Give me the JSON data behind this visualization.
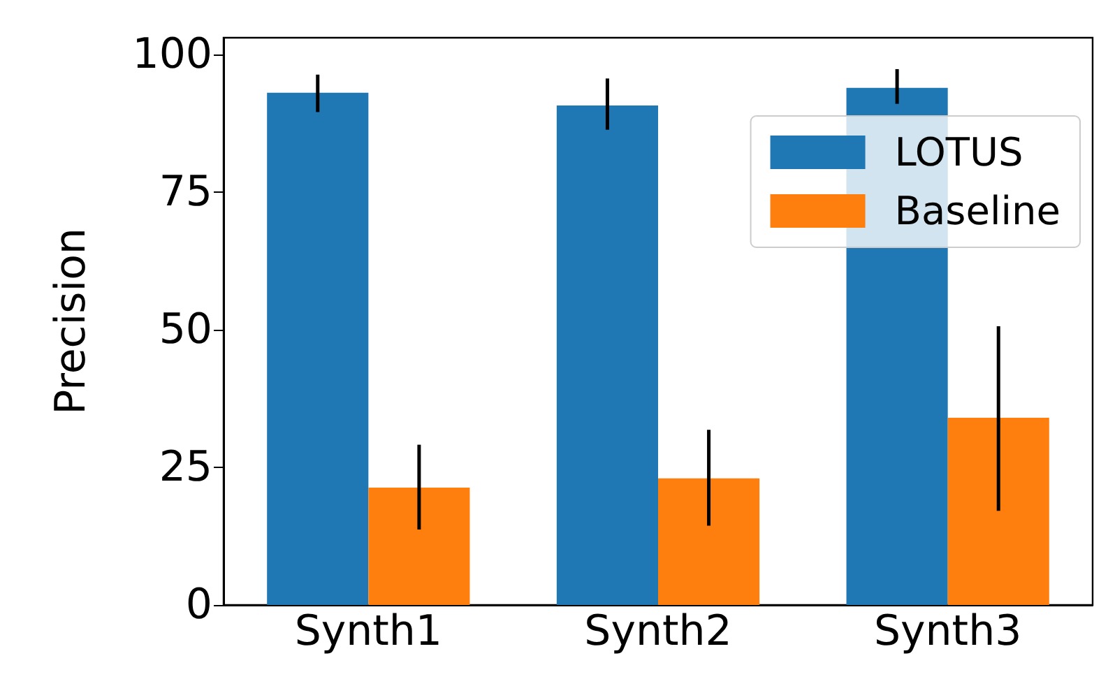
{
  "chart_data": {
    "type": "bar",
    "ylabel": "Precision",
    "categories": [
      "Synth1",
      "Synth2",
      "Synth3"
    ],
    "series": [
      {
        "name": "LOTUS",
        "color": "#1f77b4",
        "values": [
          93,
          90.7,
          93.9
        ],
        "errors": [
          [
            89.5,
            96.3
          ],
          [
            86.3,
            95.6
          ],
          [
            91,
            97.3
          ]
        ]
      },
      {
        "name": "Baseline",
        "color": "#ff7f0e",
        "values": [
          21.3,
          23,
          34
        ],
        "errors": [
          [
            13.7,
            29.1
          ],
          [
            14.4,
            31.8
          ],
          [
            17.1,
            50.6
          ]
        ]
      }
    ],
    "ylim": [
      0,
      103
    ],
    "yticks": [
      0,
      25,
      50,
      75,
      100
    ],
    "grid": false,
    "legend": "top right"
  }
}
